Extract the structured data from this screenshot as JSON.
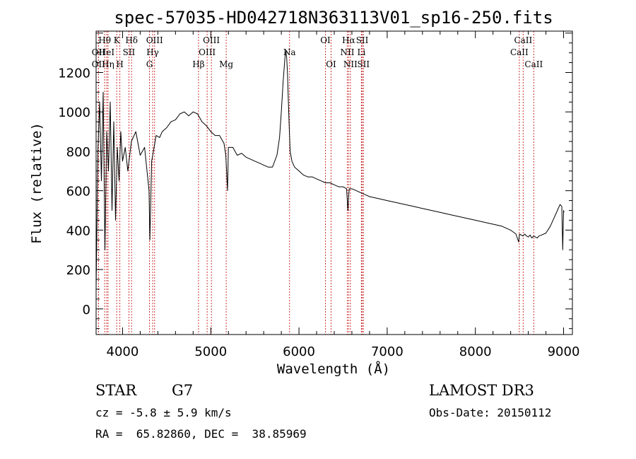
{
  "chart_data": {
    "type": "line",
    "title": "spec-57035-HD042718N363113V01_sp16-250.fits",
    "xlabel": "Wavelength (Å)",
    "ylabel": "Flux (relative)",
    "xlim": [
      3700,
      9100
    ],
    "ylim": [
      -130,
      1410
    ],
    "xticks": [
      4000,
      5000,
      6000,
      7000,
      8000,
      9000
    ],
    "yticks": [
      0,
      200,
      400,
      600,
      800,
      1000,
      1200
    ],
    "series": [
      {
        "name": "spectrum",
        "x": [
          3700,
          3720,
          3740,
          3760,
          3780,
          3800,
          3820,
          3840,
          3860,
          3880,
          3900,
          3920,
          3940,
          3960,
          3980,
          4000,
          4030,
          4060,
          4100,
          4150,
          4200,
          4250,
          4300,
          4310,
          4330,
          4350,
          4380,
          4420,
          4450,
          4500,
          4550,
          4600,
          4650,
          4700,
          4750,
          4800,
          4850,
          4900,
          4950,
          5000,
          5050,
          5100,
          5150,
          5170,
          5190,
          5200,
          5250,
          5300,
          5350,
          5400,
          5450,
          5500,
          5550,
          5600,
          5650,
          5700,
          5750,
          5780,
          5800,
          5820,
          5840,
          5850,
          5860,
          5870,
          5880,
          5890,
          5900,
          5920,
          5950,
          6000,
          6050,
          6100,
          6150,
          6200,
          6250,
          6300,
          6350,
          6400,
          6450,
          6500,
          6540,
          6555,
          6563,
          6570,
          6600,
          6650,
          6700,
          6750,
          6800,
          6900,
          7000,
          7100,
          7200,
          7300,
          7400,
          7500,
          7600,
          7700,
          7800,
          7900,
          8000,
          8100,
          8200,
          8300,
          8400,
          8460,
          8490,
          8500,
          8520,
          8540,
          8560,
          8580,
          8600,
          8620,
          8640,
          8660,
          8680,
          8700,
          8720,
          8750,
          8800,
          8850,
          8900,
          8930,
          8960,
          8980,
          8990,
          9000,
          9005
        ],
        "values": [
          100,
          800,
          1050,
          650,
          1100,
          300,
          900,
          700,
          1050,
          500,
          950,
          450,
          820,
          650,
          900,
          750,
          820,
          700,
          850,
          900,
          780,
          820,
          600,
          350,
          750,
          800,
          880,
          870,
          900,
          920,
          950,
          960,
          990,
          1000,
          980,
          1000,
          990,
          950,
          930,
          900,
          880,
          880,
          840,
          780,
          600,
          820,
          820,
          780,
          790,
          770,
          760,
          750,
          740,
          730,
          720,
          720,
          780,
          870,
          1000,
          1150,
          1270,
          1310,
          1280,
          1200,
          1050,
          920,
          800,
          750,
          720,
          700,
          680,
          670,
          670,
          660,
          650,
          640,
          640,
          630,
          620,
          620,
          610,
          500,
          570,
          610,
          610,
          600,
          590,
          580,
          570,
          560,
          550,
          540,
          530,
          520,
          510,
          500,
          490,
          480,
          470,
          460,
          450,
          440,
          430,
          420,
          400,
          380,
          340,
          380,
          375,
          370,
          380,
          370,
          365,
          375,
          360,
          370,
          365,
          360,
          370,
          375,
          385,
          420,
          470,
          500,
          530,
          520,
          300,
          500,
          490
        ]
      }
    ],
    "spectral_lines": [
      {
        "label": "OII",
        "wavelength": 3727,
        "row": 3
      },
      {
        "label": "Hθ",
        "wavelength": 3797,
        "row": 1
      },
      {
        "label": "OII",
        "wavelength": 3727,
        "row": 2
      },
      {
        "label": "HeI",
        "wavelength": 3820,
        "row": 2
      },
      {
        "label": "Hη",
        "wavelength": 3835,
        "row": 3
      },
      {
        "label": "K",
        "wavelength": 3934,
        "row": 1
      },
      {
        "label": "H",
        "wavelength": 3969,
        "row": 3
      },
      {
        "label": "SII",
        "wavelength": 4072,
        "row": 2
      },
      {
        "label": "Hδ",
        "wavelength": 4102,
        "row": 1
      },
      {
        "label": "OIII",
        "wavelength": 4363,
        "row": 1
      },
      {
        "label": "Hγ",
        "wavelength": 4341,
        "row": 2
      },
      {
        "label": "G",
        "wavelength": 4305,
        "row": 3
      },
      {
        "label": "Hβ",
        "wavelength": 4861,
        "row": 3
      },
      {
        "label": "OIII",
        "wavelength": 5007,
        "row": 1
      },
      {
        "label": "OIII",
        "wavelength": 4959,
        "row": 2
      },
      {
        "label": "Mg",
        "wavelength": 5175,
        "row": 3
      },
      {
        "label": "Na",
        "wavelength": 5893,
        "row": 2
      },
      {
        "label": "OI",
        "wavelength": 6300,
        "row": 1
      },
      {
        "label": "OI",
        "wavelength": 6364,
        "row": 3
      },
      {
        "label": "Hα",
        "wavelength": 6563,
        "row": 1
      },
      {
        "label": "NII",
        "wavelength": 6548,
        "row": 2
      },
      {
        "label": "NII",
        "wavelength": 6583,
        "row": 3
      },
      {
        "label": "SII",
        "wavelength": 6717,
        "row": 1
      },
      {
        "label": "Li",
        "wavelength": 6708,
        "row": 2
      },
      {
        "label": "SII",
        "wavelength": 6731,
        "row": 3
      },
      {
        "label": "CaII",
        "wavelength": 8542,
        "row": 1
      },
      {
        "label": "CaII",
        "wavelength": 8498,
        "row": 2
      },
      {
        "label": "CaII",
        "wavelength": 8662,
        "row": 3
      }
    ]
  },
  "info": {
    "object_class": "STAR",
    "subclass": "G7",
    "survey": "LAMOST DR3",
    "cz": "cz = -5.8 ± 5.9 km/s",
    "obs_date": "Obs-Date: 20150112",
    "radec": "RA =  65.82860, DEC =  38.85969"
  },
  "colors": {
    "line": "#000000",
    "marker": "#cc3333"
  }
}
